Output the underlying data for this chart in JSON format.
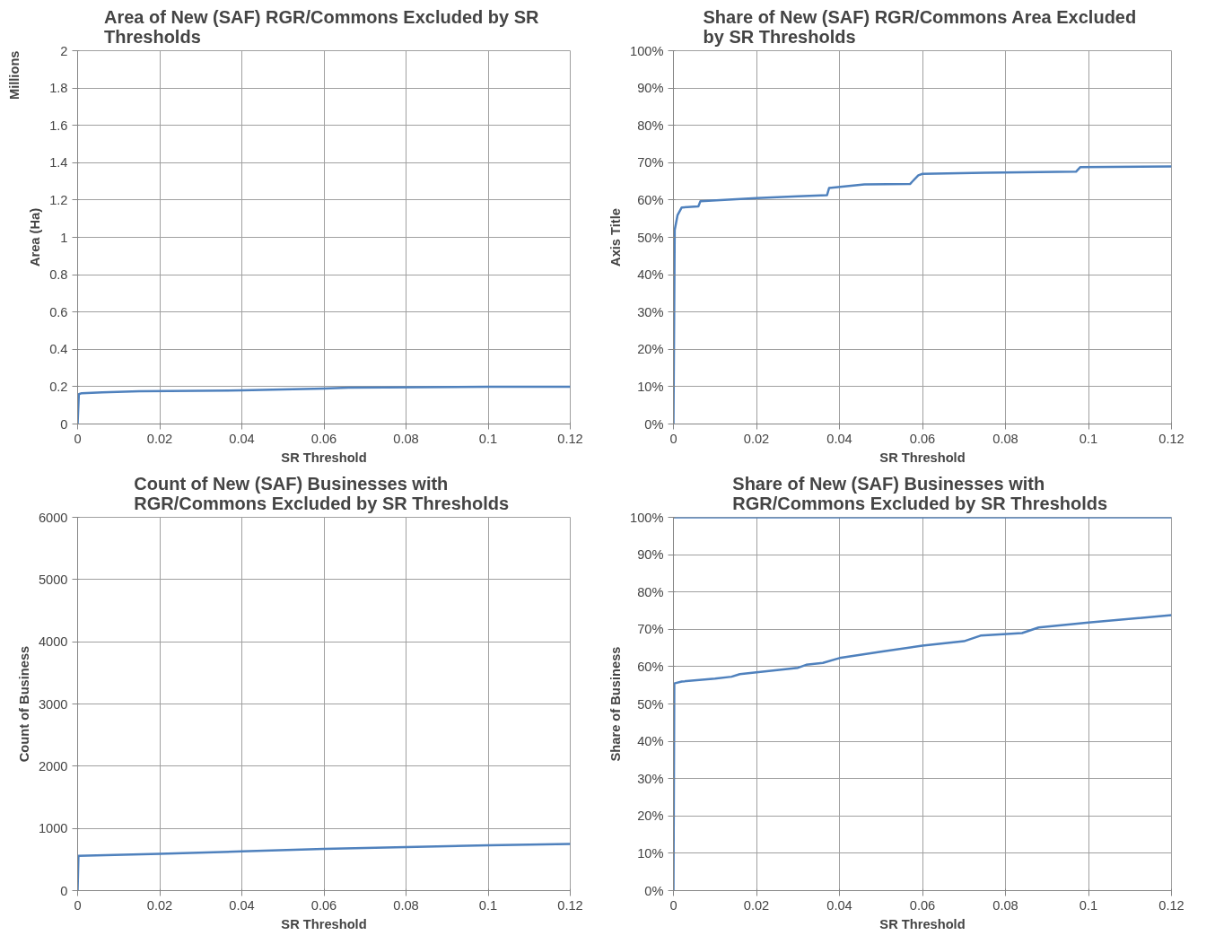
{
  "chart_data": [
    {
      "type": "line",
      "title": "Area of New (SAF) RGR/Commons  Excluded by SR Thresholds",
      "xlabel": "SR Threshold",
      "ylabel": "Area (Ha)",
      "annotations": [
        "Millions"
      ],
      "grid": true,
      "marker": "none",
      "line_style": "solid",
      "xlim": [
        0,
        0.12
      ],
      "xticks": [
        0,
        0.02,
        0.04,
        0.06,
        0.08,
        0.1,
        0.12
      ],
      "ylim": [
        0,
        2
      ],
      "yticks": [
        0,
        0.2,
        0.4,
        0.6,
        0.8,
        1,
        1.2,
        1.4,
        1.6,
        1.8,
        2
      ],
      "series": [
        {
          "color": "#4f81bd",
          "x": [
            0,
            0.0003,
            0.001,
            0.006,
            0.015,
            0.04,
            0.05,
            0.06,
            0.066,
            0.1,
            0.12
          ],
          "values": [
            0,
            0.16,
            0.165,
            0.17,
            0.175,
            0.18,
            0.185,
            0.19,
            0.195,
            0.2,
            0.2
          ]
        }
      ]
    },
    {
      "type": "line",
      "title": "Share of New (SAF) RGR/Commons  Area Excluded by SR Thresholds",
      "xlabel": "SR Threshold",
      "ylabel": "Axis Title",
      "grid": true,
      "marker": "none",
      "line_style": "solid",
      "xlim": [
        0,
        0.12
      ],
      "xticks": [
        0,
        0.02,
        0.04,
        0.06,
        0.08,
        0.1,
        0.12
      ],
      "ylim": [
        0,
        100
      ],
      "yticks": [
        {
          "value": 0,
          "label": "0%"
        },
        {
          "value": 10,
          "label": "10%"
        },
        {
          "value": 20,
          "label": "20%"
        },
        {
          "value": 30,
          "label": "30%"
        },
        {
          "value": 40,
          "label": "40%"
        },
        {
          "value": 50,
          "label": "50%"
        },
        {
          "value": 60,
          "label": "60%"
        },
        {
          "value": 70,
          "label": "70%"
        },
        {
          "value": 80,
          "label": "80%"
        },
        {
          "value": 90,
          "label": "90%"
        },
        {
          "value": 100,
          "label": "100%"
        }
      ],
      "series": [
        {
          "color": "#4f81bd",
          "x": [
            0,
            0.0003,
            0.001,
            0.002,
            0.006,
            0.0065,
            0.02,
            0.03,
            0.037,
            0.0375,
            0.046,
            0.057,
            0.059,
            0.06,
            0.075,
            0.097,
            0.098,
            0.12
          ],
          "values": [
            0,
            52,
            56,
            58,
            58.3,
            59.7,
            60.5,
            61,
            61.3,
            63.2,
            64.2,
            64.3,
            66.6,
            67,
            67.3,
            67.6,
            68.8,
            69
          ]
        }
      ]
    },
    {
      "type": "line",
      "title": "Count of New (SAF) Businesses with RGR/Commons  Excluded by SR Thresholds",
      "xlabel": "SR Threshold",
      "ylabel": "Count of Business",
      "grid": true,
      "marker": "none",
      "line_style": "solid",
      "xlim": [
        0,
        0.12
      ],
      "xticks": [
        0,
        0.02,
        0.04,
        0.06,
        0.08,
        0.1,
        0.12
      ],
      "ylim": [
        0,
        6000
      ],
      "yticks": [
        0,
        1000,
        2000,
        3000,
        4000,
        5000,
        6000
      ],
      "series": [
        {
          "color": "#4f81bd",
          "x": [
            0,
            0.0002,
            0.02,
            0.04,
            0.06,
            0.08,
            0.1,
            0.12
          ],
          "values": [
            0,
            560,
            590,
            630,
            670,
            700,
            730,
            750
          ]
        }
      ]
    },
    {
      "type": "line",
      "title": "Share of New (SAF) Businesses with RGR/Commons  Excluded by SR Thresholds",
      "xlabel": "SR Threshold",
      "ylabel": "Share of Business",
      "grid": true,
      "marker": "none",
      "line_style": "solid",
      "xlim": [
        0,
        0.12
      ],
      "xticks": [
        0,
        0.02,
        0.04,
        0.06,
        0.08,
        0.1,
        0.12
      ],
      "ylim": [
        0,
        100
      ],
      "yticks": [
        {
          "value": 0,
          "label": "0%"
        },
        {
          "value": 10,
          "label": "10%"
        },
        {
          "value": 20,
          "label": "20%"
        },
        {
          "value": 30,
          "label": "30%"
        },
        {
          "value": 40,
          "label": "40%"
        },
        {
          "value": 50,
          "label": "50%"
        },
        {
          "value": 60,
          "label": "60%"
        },
        {
          "value": 70,
          "label": "70%"
        },
        {
          "value": 80,
          "label": "80%"
        },
        {
          "value": 90,
          "label": "90%"
        },
        {
          "value": 100,
          "label": "100%"
        }
      ],
      "series": [
        {
          "color": "#4f81bd",
          "x": [
            0,
            0.12
          ],
          "values": [
            100,
            100
          ]
        },
        {
          "color": "#4f81bd",
          "x": [
            0,
            0.0002,
            0.002,
            0.01,
            0.014,
            0.016,
            0.02,
            0.03,
            0.032,
            0.036,
            0.04,
            0.05,
            0.06,
            0.07,
            0.074,
            0.084,
            0.088,
            0.1,
            0.12
          ],
          "values": [
            0,
            55.5,
            56,
            56.8,
            57.3,
            58,
            58.5,
            59.7,
            60.5,
            61,
            62.3,
            64,
            65.6,
            66.8,
            68.3,
            69,
            70.5,
            71.8,
            73.8
          ]
        }
      ]
    }
  ]
}
